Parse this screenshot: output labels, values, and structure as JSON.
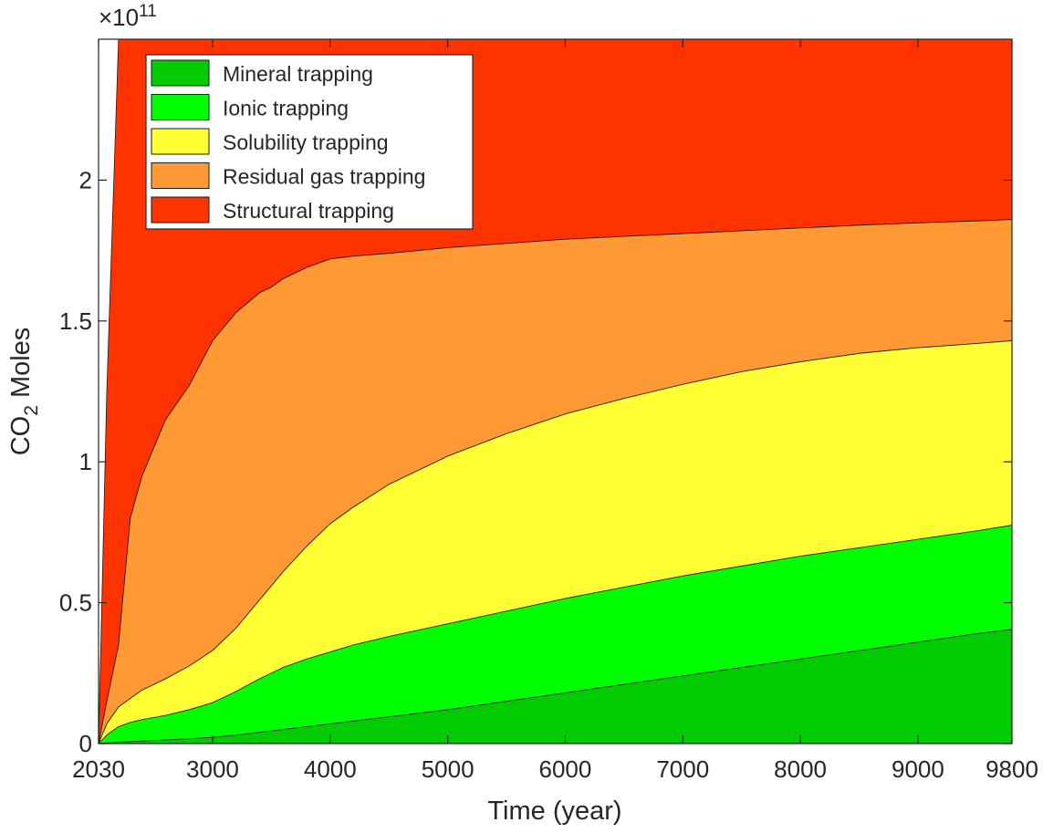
{
  "chart_data": {
    "type": "area",
    "stacked": true,
    "title": "",
    "xlabel": "Time (year)",
    "ylabel_main": "CO",
    "ylabel_sub": "2",
    "ylabel_rest": " Moles",
    "y_multiplier_prefix": "×10",
    "y_multiplier_exp": "11",
    "xlim": [
      2030,
      9800
    ],
    "ylim": [
      0,
      2.5
    ],
    "x_ticks": [
      2030,
      3000,
      4000,
      5000,
      6000,
      7000,
      8000,
      9000,
      9800
    ],
    "x_tick_labels": [
      "2030",
      "3000",
      "4000",
      "5000",
      "6000",
      "7000",
      "8000",
      "9000",
      "9800"
    ],
    "y_ticks": [
      0,
      0.5,
      1,
      1.5,
      2
    ],
    "y_tick_labels": [
      "0",
      "0.5",
      "1",
      "1.5",
      "2"
    ],
    "legend_position": "top-left",
    "x": [
      2030,
      2100,
      2200,
      2300,
      2400,
      2600,
      2800,
      3000,
      3200,
      3400,
      3500,
      3600,
      3800,
      4000,
      4200,
      4500,
      5000,
      5500,
      6000,
      6500,
      7000,
      7500,
      8000,
      8500,
      9000,
      9500,
      9800
    ],
    "series": [
      {
        "name": "Mineral trapping",
        "color": "#00cc00",
        "cumulative": [
          0,
          0.002,
          0.005,
          0.007,
          0.009,
          0.013,
          0.017,
          0.022,
          0.03,
          0.04,
          0.045,
          0.05,
          0.06,
          0.07,
          0.08,
          0.095,
          0.12,
          0.15,
          0.18,
          0.21,
          0.24,
          0.27,
          0.3,
          0.33,
          0.36,
          0.39,
          0.405
        ]
      },
      {
        "name": "Ionic trapping",
        "color": "#00ff00",
        "cumulative": [
          0,
          0.03,
          0.06,
          0.075,
          0.085,
          0.1,
          0.12,
          0.145,
          0.185,
          0.23,
          0.25,
          0.27,
          0.3,
          0.325,
          0.35,
          0.38,
          0.425,
          0.47,
          0.515,
          0.555,
          0.595,
          0.63,
          0.665,
          0.695,
          0.725,
          0.755,
          0.775
        ]
      },
      {
        "name": "Solubility trapping",
        "color": "#ffff33",
        "cumulative": [
          0,
          0.07,
          0.13,
          0.16,
          0.19,
          0.23,
          0.275,
          0.33,
          0.41,
          0.51,
          0.56,
          0.61,
          0.7,
          0.78,
          0.84,
          0.92,
          1.02,
          1.1,
          1.17,
          1.225,
          1.275,
          1.32,
          1.355,
          1.385,
          1.405,
          1.42,
          1.43
        ]
      },
      {
        "name": "Residual gas trapping",
        "color": "#ff9933",
        "cumulative": [
          0,
          0.15,
          0.35,
          0.8,
          0.95,
          1.15,
          1.27,
          1.43,
          1.53,
          1.6,
          1.62,
          1.65,
          1.69,
          1.72,
          1.73,
          1.74,
          1.76,
          1.775,
          1.79,
          1.8,
          1.81,
          1.82,
          1.83,
          1.84,
          1.848,
          1.855,
          1.86
        ]
      },
      {
        "name": "Structural trapping",
        "color": "#ff3300",
        "cumulative": [
          0,
          1.25,
          2.5,
          2.5,
          2.5,
          2.5,
          2.5,
          2.5,
          2.5,
          2.5,
          2.5,
          2.5,
          2.5,
          2.5,
          2.5,
          2.5,
          2.5,
          2.5,
          2.5,
          2.5,
          2.5,
          2.5,
          2.5,
          2.5,
          2.5,
          2.5,
          2.5
        ]
      }
    ]
  }
}
